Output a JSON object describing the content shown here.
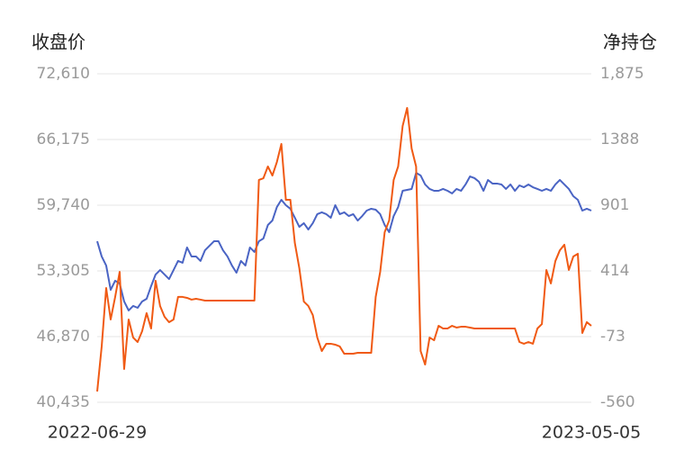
{
  "chart_data": {
    "type": "line",
    "ylabel": "收盘价",
    "y2label": "净持仓",
    "categories": [
      "2022-06-29",
      null,
      null,
      null,
      null,
      null,
      null,
      null,
      null,
      null,
      null,
      null,
      null,
      null,
      null,
      null,
      null,
      null,
      null,
      null,
      null,
      null,
      null,
      null,
      null,
      null,
      null,
      null,
      null,
      null,
      null,
      null,
      null,
      null,
      null,
      null,
      null,
      null,
      null,
      null,
      null,
      null,
      null,
      null,
      null,
      null,
      null,
      null,
      null,
      null,
      null,
      null,
      null,
      null,
      null,
      null,
      null,
      null,
      null,
      null,
      null,
      null,
      null,
      null,
      null,
      null,
      null,
      null,
      null,
      null,
      null,
      null,
      null,
      null,
      null,
      null,
      null,
      null,
      null,
      null,
      null,
      null,
      null,
      null,
      null,
      null,
      null,
      null,
      null,
      null,
      null,
      null,
      null,
      null,
      null,
      null,
      null,
      null,
      null,
      null,
      null,
      null,
      null,
      null,
      null,
      null,
      null,
      null,
      null,
      null,
      "2023-05-05"
    ],
    "series": [
      {
        "color": "#4a64c4",
        "axis": "y",
        "values": [
          56210,
          54720,
          53830,
          51450,
          52340,
          52070,
          50310,
          49430,
          49870,
          49690,
          50310,
          50570,
          51810,
          52950,
          53390,
          52950,
          52510,
          53390,
          54280,
          54100,
          55600,
          54720,
          54720,
          54280,
          55330,
          55770,
          56210,
          56210,
          55330,
          54720,
          53830,
          53130,
          54280,
          53830,
          55600,
          55160,
          56210,
          56480,
          57800,
          58240,
          59560,
          60270,
          59740,
          59390,
          58510,
          57620,
          57980,
          57360,
          57980,
          58860,
          59040,
          58860,
          58510,
          59740,
          58860,
          59040,
          58680,
          58860,
          58240,
          58680,
          59210,
          59390,
          59300,
          58860,
          57800,
          57100,
          58680,
          59560,
          61150,
          61240,
          61330,
          62910,
          62650,
          61770,
          61330,
          61150,
          61150,
          61330,
          61150,
          60890,
          61330,
          61150,
          61770,
          62560,
          62390,
          62030,
          61150,
          62210,
          61860,
          61860,
          61770,
          61330,
          61770,
          61150,
          61680,
          61500,
          61770,
          61500,
          61330,
          61150,
          61330,
          61150,
          61770,
          62210,
          61770,
          61330,
          60620,
          60270,
          59210,
          59390,
          59210
        ]
      },
      {
        "color": "#f05a14",
        "axis": "y2",
        "values": [
          -480,
          -146,
          287,
          54,
          221,
          407,
          -313,
          54,
          -80,
          -113,
          -33,
          101,
          -13,
          341,
          154,
          74,
          34,
          54,
          221,
          221,
          214,
          201,
          207,
          201,
          194,
          194,
          194,
          194,
          194,
          194,
          194,
          194,
          194,
          194,
          194,
          194,
          1088,
          1101,
          1188,
          1121,
          1221,
          1355,
          941,
          941,
          621,
          434,
          187,
          154,
          87,
          -80,
          -180,
          -126,
          -126,
          -133,
          -146,
          -200,
          -200,
          -200,
          -193,
          -193,
          -193,
          -193,
          221,
          407,
          701,
          788,
          1088,
          1188,
          1488,
          1622,
          1321,
          1188,
          -180,
          -280,
          -80,
          -100,
          7,
          -13,
          -13,
          7,
          -6,
          0,
          0,
          -6,
          -13,
          -13,
          -13,
          -13,
          -13,
          -13,
          -13,
          -13,
          -13,
          -13,
          -113,
          -126,
          -113,
          -126,
          -13,
          20,
          421,
          321,
          487,
          567,
          608,
          421,
          521,
          541,
          -46,
          34,
          7
        ]
      }
    ],
    "ylim": [
      40435,
      72610
    ],
    "yticks": [
      {
        "value": 40435,
        "label": "40,435"
      },
      {
        "value": 46870,
        "label": "46,870"
      },
      {
        "value": 53305,
        "label": "53,305"
      },
      {
        "value": 59740,
        "label": "59,740"
      },
      {
        "value": 66175,
        "label": "66,175"
      },
      {
        "value": 72610,
        "label": "72,610"
      }
    ],
    "y2lim": [
      -560,
      1875
    ],
    "y2ticks": [
      -560,
      -73,
      414,
      901,
      1388,
      {
        "value": 1875,
        "label": "1,875"
      }
    ],
    "grid": true
  }
}
